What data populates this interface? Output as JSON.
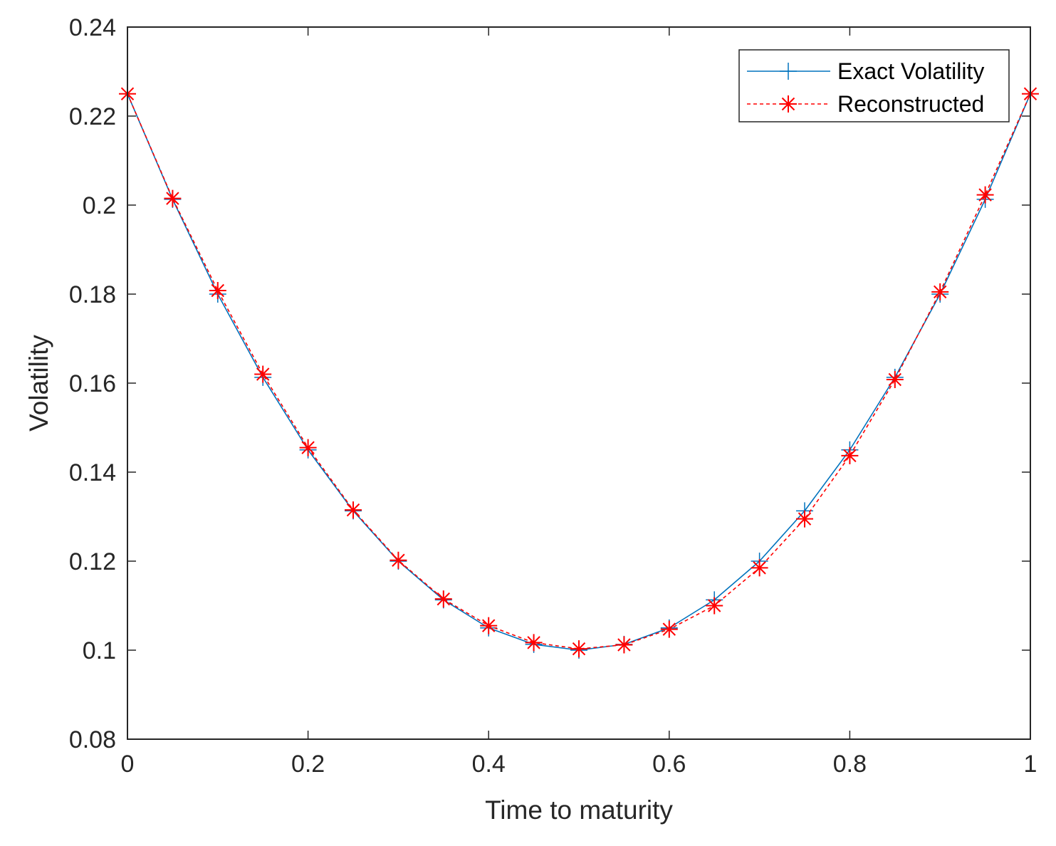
{
  "chart_data": {
    "type": "line",
    "title": "",
    "xlabel": "Time to maturity",
    "ylabel": "Volatility",
    "xlim": [
      0,
      1
    ],
    "ylim": [
      0.08,
      0.24
    ],
    "xticks": [
      0,
      0.2,
      0.4,
      0.6,
      0.8,
      1
    ],
    "xtick_labels": [
      "0",
      "0.2",
      "0.4",
      "0.6",
      "0.8",
      "1"
    ],
    "yticks": [
      0.08,
      0.1,
      0.12,
      0.14,
      0.16,
      0.18,
      0.2,
      0.22,
      0.24
    ],
    "ytick_labels": [
      "0.08",
      "0.1",
      "0.12",
      "0.14",
      "0.16",
      "0.18",
      "0.2",
      "0.22",
      "0.24"
    ],
    "grid": false,
    "legend_position": "top-right",
    "x": [
      0,
      0.05,
      0.1,
      0.15,
      0.2,
      0.25,
      0.3,
      0.35,
      0.4,
      0.45,
      0.5,
      0.55,
      0.6,
      0.65,
      0.7,
      0.75,
      0.8,
      0.85,
      0.9,
      0.95,
      1
    ],
    "series": [
      {
        "name": "Exact Volatility",
        "color": "#0072BD",
        "line_style": "solid",
        "marker": "plus",
        "values": [
          0.225,
          0.2013,
          0.18,
          0.1613,
          0.145,
          0.1313,
          0.12,
          0.1113,
          0.105,
          0.1013,
          0.1,
          0.1013,
          0.105,
          0.1113,
          0.12,
          0.1313,
          0.145,
          0.1613,
          0.18,
          0.2013,
          0.225
        ]
      },
      {
        "name": "Reconstructed",
        "color": "#FF0000",
        "line_style": "dashed",
        "marker": "asterisk",
        "values": [
          0.225,
          0.2015,
          0.1808,
          0.162,
          0.1455,
          0.1315,
          0.1202,
          0.1115,
          0.1055,
          0.1017,
          0.1003,
          0.1012,
          0.1047,
          0.11,
          0.1185,
          0.1295,
          0.1437,
          0.1608,
          0.1805,
          0.2023,
          0.225
        ]
      }
    ]
  }
}
